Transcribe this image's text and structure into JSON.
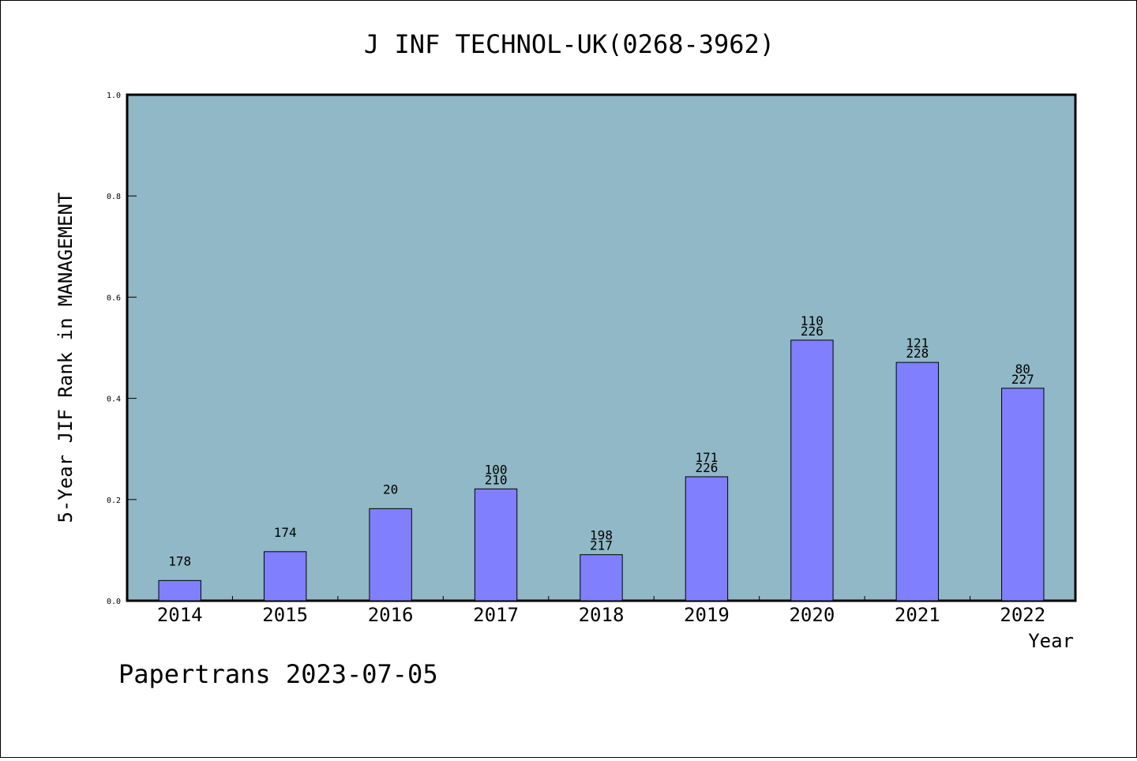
{
  "chart_data": {
    "type": "bar",
    "title": "J INF TECHNOL-UK(0268-3962)",
    "xlabel": "Year",
    "ylabel": "5-Year JIF Rank in MANAGEMENT",
    "ylim": [
      0,
      1.0
    ],
    "yticks": [
      "0.0",
      "0.2",
      "0.4",
      "0.6",
      "0.8",
      "1.0"
    ],
    "yticks_values": [
      0,
      0.2,
      0.4,
      0.6,
      0.8,
      1.0
    ],
    "categories": [
      "2014",
      "2015",
      "2016",
      "2017",
      "2018",
      "2019",
      "2020",
      "2021",
      "2022"
    ],
    "values": [
      0.04,
      0.097,
      0.182,
      0.221,
      0.091,
      0.245,
      0.515,
      0.471,
      0.42
    ],
    "labels_top": [
      "178",
      "174",
      "20",
      "100",
      "198",
      "171",
      "110",
      "121",
      "80"
    ],
    "labels_bottom": [
      "",
      "",
      "",
      "210",
      "217",
      "226",
      "226",
      "228",
      "227"
    ],
    "grid": false,
    "colors": {
      "plot_bg": "#90b8c6",
      "bar": "#8080ff",
      "bar_edge": "#000000"
    }
  },
  "footer": "Papertrans 2023-07-05"
}
